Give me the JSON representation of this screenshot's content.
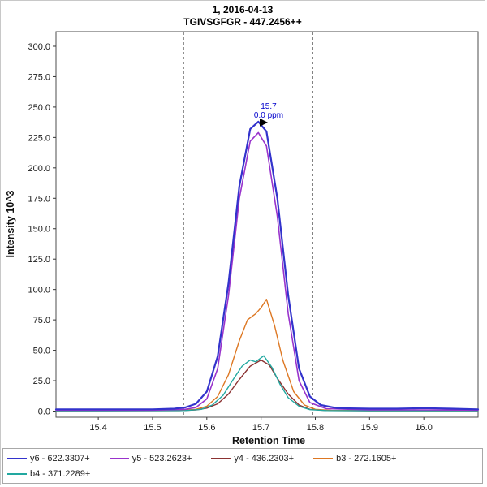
{
  "chart_data": {
    "type": "line",
    "title": "1, 2016-04-13",
    "subtitle": "TGIVSGFGR - 447.2456++",
    "xlabel": "Retention Time",
    "ylabel": "Intensity 10^3",
    "xlim": [
      15.322,
      16.1
    ],
    "ylim": [
      -5,
      312
    ],
    "xticks": [
      15.4,
      15.5,
      15.6,
      15.7,
      15.8,
      15.9,
      16.0
    ],
    "yticks": [
      0,
      25,
      50,
      75,
      100,
      125,
      150,
      175,
      200,
      225,
      250,
      275,
      300
    ],
    "grid": false,
    "legend_position": "bottom",
    "integration_boundaries": [
      15.557,
      15.795
    ],
    "peak_annotation": {
      "retention_time": "15.7",
      "mass_error": "0.0 ppm",
      "x": 15.705,
      "y": 238
    },
    "series": [
      {
        "id": "y6",
        "name": "y6 - 622.3307+",
        "color": "#3333cc",
        "width": 2.2,
        "x": [
          15.322,
          15.4,
          15.45,
          15.5,
          15.54,
          15.56,
          15.58,
          15.6,
          15.62,
          15.64,
          15.66,
          15.68,
          15.695,
          15.71,
          15.73,
          15.75,
          15.77,
          15.79,
          15.81,
          15.84,
          15.9,
          15.95,
          16.0,
          16.05,
          16.1
        ],
        "y": [
          1.5,
          1.5,
          1.5,
          1.5,
          2,
          3,
          6,
          16,
          45,
          105,
          185,
          232,
          238,
          230,
          175,
          95,
          35,
          12,
          5,
          2.5,
          2,
          2,
          2.5,
          2,
          1.5
        ]
      },
      {
        "id": "y5",
        "name": "y5 - 523.2623+",
        "color": "#9933cc",
        "width": 1.6,
        "x": [
          15.322,
          15.5,
          15.56,
          15.58,
          15.6,
          15.62,
          15.64,
          15.66,
          15.68,
          15.695,
          15.71,
          15.73,
          15.75,
          15.77,
          15.79,
          15.82,
          15.9,
          16.0,
          16.1
        ],
        "y": [
          0.8,
          0.8,
          1.5,
          3,
          10,
          35,
          95,
          175,
          222,
          229,
          218,
          160,
          80,
          25,
          7,
          2,
          1,
          1,
          0.8
        ]
      },
      {
        "id": "y4",
        "name": "y4 - 436.2303+",
        "color": "#8b3232",
        "width": 1.4,
        "x": [
          15.322,
          15.55,
          15.58,
          15.6,
          15.62,
          15.64,
          15.66,
          15.68,
          15.7,
          15.715,
          15.73,
          15.75,
          15.77,
          15.79,
          15.82,
          15.9,
          16.0,
          16.1
        ],
        "y": [
          0.3,
          0.4,
          1,
          2.5,
          6,
          14,
          26,
          37,
          42,
          38,
          27,
          14,
          5,
          1.5,
          0.5,
          0.3,
          0.3,
          0.3
        ]
      },
      {
        "id": "b3",
        "name": "b3 - 272.1605+",
        "color": "#dd7722",
        "width": 1.4,
        "x": [
          15.322,
          15.55,
          15.58,
          15.6,
          15.62,
          15.64,
          15.66,
          15.675,
          15.69,
          15.7,
          15.71,
          15.725,
          15.74,
          15.76,
          15.78,
          15.8,
          15.83,
          15.9,
          16.0,
          16.1
        ],
        "y": [
          0.4,
          0.6,
          1.5,
          4,
          12,
          30,
          58,
          75,
          80,
          85,
          92,
          70,
          42,
          16,
          5,
          1.5,
          0.6,
          0.4,
          0.4,
          0.4
        ]
      },
      {
        "id": "b4",
        "name": "b4 - 371.2289+",
        "color": "#22a8a0",
        "width": 1.4,
        "x": [
          15.322,
          15.56,
          15.59,
          15.61,
          15.63,
          15.65,
          15.665,
          15.68,
          15.69,
          15.705,
          15.72,
          15.735,
          15.75,
          15.77,
          15.79,
          15.82,
          15.9,
          16.0,
          16.1
        ],
        "y": [
          0.3,
          0.5,
          1.5,
          5,
          13,
          27,
          37,
          42,
          40.5,
          45.5,
          36,
          22,
          11,
          4,
          1.2,
          0.5,
          0.3,
          0.3,
          0.3
        ]
      }
    ],
    "draw_order": [
      2,
      3,
      4,
      1,
      0
    ]
  }
}
